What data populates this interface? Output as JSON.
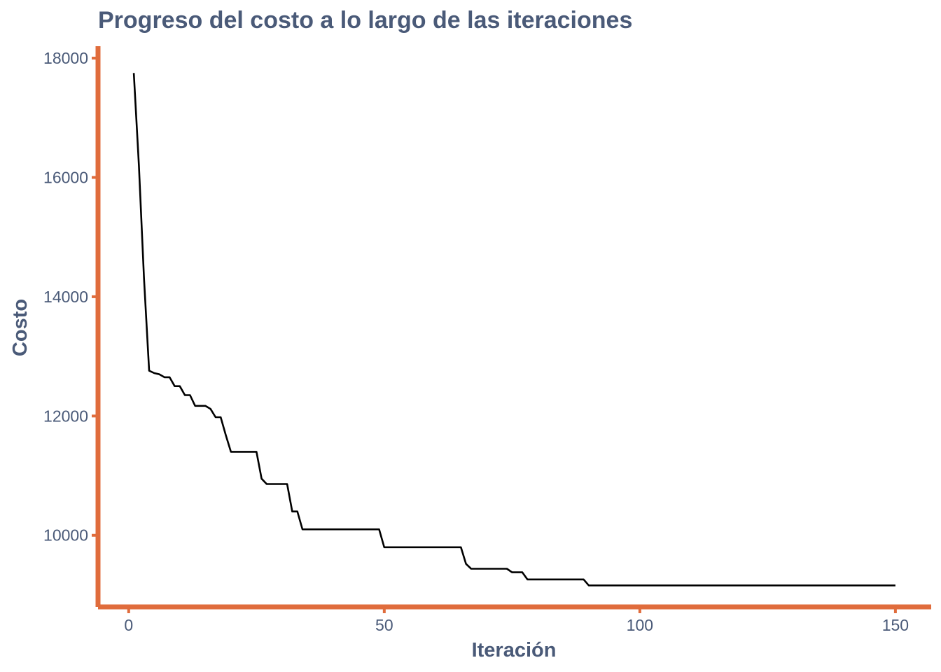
{
  "colors": {
    "accent": "#e06c3c",
    "text": "#4a5a78",
    "line": "#000000"
  },
  "chart_data": {
    "type": "line",
    "title": "Progreso del costo a lo largo de las iteraciones",
    "xlabel": "Iteración",
    "ylabel": "Costo",
    "xlim": [
      -6,
      157
    ],
    "ylim": [
      8800,
      18200
    ],
    "xticks": [
      0,
      50,
      100,
      150
    ],
    "yticks": [
      10000,
      12000,
      14000,
      16000,
      18000
    ],
    "grid": false,
    "legend": "none",
    "series": [
      {
        "x": [
          1,
          2,
          3,
          4,
          5,
          6,
          7,
          8,
          9,
          10,
          11,
          12,
          13,
          14,
          15,
          16,
          17,
          18,
          19,
          20,
          21,
          22,
          23,
          24,
          25,
          26,
          27,
          28,
          29,
          30,
          31,
          32,
          33,
          34,
          35,
          40,
          45,
          49,
          50,
          55,
          60,
          65,
          66,
          67,
          70,
          74,
          75,
          77,
          78,
          80,
          85,
          89,
          90,
          100,
          110,
          120,
          130,
          140,
          150
        ],
        "y": [
          17750,
          16200,
          14300,
          12760,
          12720,
          12700,
          12650,
          12650,
          12500,
          12500,
          12350,
          12350,
          12170,
          12170,
          12170,
          12120,
          11980,
          11980,
          11680,
          11400,
          11400,
          11400,
          11400,
          11400,
          11400,
          10950,
          10860,
          10860,
          10860,
          10860,
          10860,
          10400,
          10400,
          10100,
          10100,
          10100,
          10100,
          10100,
          9800,
          9800,
          9800,
          9800,
          9520,
          9440,
          9440,
          9440,
          9380,
          9380,
          9260,
          9260,
          9260,
          9260,
          9160,
          9160,
          9160,
          9160,
          9160,
          9160,
          9160
        ]
      }
    ]
  }
}
